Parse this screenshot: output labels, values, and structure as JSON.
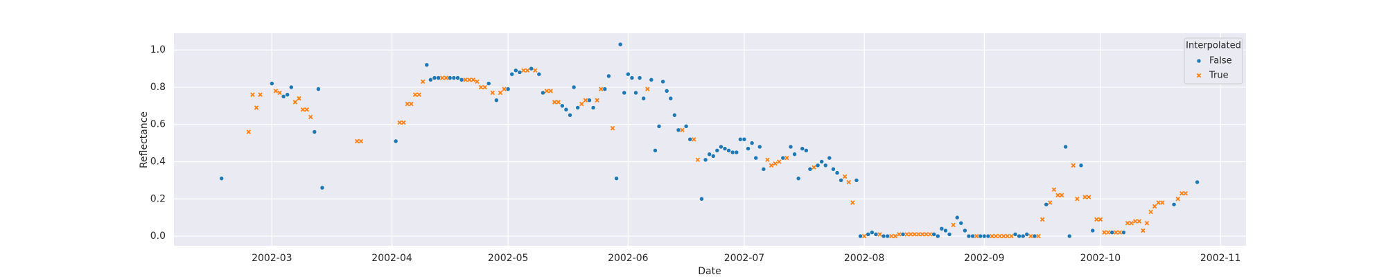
{
  "chart_data": {
    "type": "scatter",
    "x_label": "Date",
    "y_label": "Reflectance",
    "legend_title": "Interpolated",
    "legend_loc": "upper right",
    "grid": true,
    "xlim": [
      33.7,
      310.6
    ],
    "ylim": [
      -0.052,
      1.09
    ],
    "xticks": [
      {
        "value": 59,
        "label": "2002-03"
      },
      {
        "value": 90,
        "label": "2002-04"
      },
      {
        "value": 120,
        "label": "2002-05"
      },
      {
        "value": 151,
        "label": "2002-06"
      },
      {
        "value": 181,
        "label": "2002-07"
      },
      {
        "value": 212,
        "label": "2002-08"
      },
      {
        "value": 243,
        "label": "2002-09"
      },
      {
        "value": 273,
        "label": "2002-10"
      },
      {
        "value": 304,
        "label": "2002-11"
      }
    ],
    "yticks": [
      {
        "value": 0,
        "label": "0.0"
      },
      0.2,
      0.4,
      0.6,
      0.8,
      {
        "value": 1,
        "label": "1.0"
      }
    ],
    "series": [
      {
        "name": "False",
        "color": "#1f77b4",
        "marker": "o",
        "x": [
          46,
          59,
          62,
          63,
          64,
          70,
          71,
          72,
          91,
          99,
          100,
          101,
          102,
          105,
          106,
          107,
          108,
          115,
          117,
          120,
          121,
          122,
          123,
          126,
          128,
          129,
          134,
          135,
          136,
          137,
          138,
          141,
          142,
          145,
          146,
          148,
          149,
          150,
          151,
          152,
          153,
          154,
          155,
          157,
          158,
          159,
          160,
          161,
          162,
          163,
          164,
          166,
          167,
          170,
          171,
          172,
          173,
          174,
          175,
          176,
          177,
          178,
          179,
          180,
          181,
          182,
          183,
          184,
          185,
          186,
          191,
          193,
          194,
          195,
          196,
          197,
          198,
          200,
          201,
          202,
          203,
          204,
          205,
          206,
          210,
          211,
          213,
          214,
          215,
          217,
          218,
          222,
          230,
          231,
          232,
          233,
          234,
          236,
          237,
          238,
          239,
          240,
          242,
          243,
          244,
          251,
          252,
          253,
          254,
          256,
          259,
          264,
          265,
          268,
          271,
          276,
          279,
          292,
          298
        ],
        "values": [
          0.31,
          0.82,
          0.75,
          0.76,
          0.8,
          0.56,
          0.79,
          0.26,
          0.51,
          0.92,
          0.84,
          0.85,
          0.85,
          0.85,
          0.85,
          0.85,
          0.84,
          0.82,
          0.73,
          0.79,
          0.87,
          0.89,
          0.88,
          0.9,
          0.87,
          0.77,
          0.7,
          0.68,
          0.65,
          0.8,
          0.69,
          0.73,
          0.69,
          0.79,
          0.86,
          0.31,
          1.03,
          0.77,
          0.87,
          0.85,
          0.77,
          0.85,
          0.74,
          0.84,
          0.46,
          0.59,
          0.83,
          0.78,
          0.74,
          0.65,
          0.57,
          0.59,
          0.52,
          0.2,
          0.41,
          0.44,
          0.43,
          0.46,
          0.48,
          0.47,
          0.46,
          0.45,
          0.45,
          0.52,
          0.52,
          0.47,
          0.5,
          0.42,
          0.48,
          0.36,
          0.42,
          0.48,
          0.44,
          0.31,
          0.47,
          0.46,
          0.36,
          0.38,
          0.4,
          0.38,
          0.42,
          0.36,
          0.34,
          0.3,
          0.3,
          0,
          0.01,
          0.02,
          0.01,
          0,
          0,
          0.01,
          0.01,
          0,
          0.04,
          0.03,
          0.01,
          0.1,
          0.07,
          0.03,
          0,
          0,
          0,
          0,
          0,
          0.01,
          0,
          0,
          0.01,
          0,
          0.17,
          0.48,
          0,
          0.38,
          0.03,
          0.02,
          0.02,
          0.17,
          0.29
        ]
      },
      {
        "name": "True",
        "color": "#ff7f0e",
        "marker": "x",
        "x": [
          53,
          54,
          55,
          56,
          60,
          61,
          65,
          66,
          67,
          68,
          69,
          81,
          82,
          92,
          93,
          94,
          95,
          96,
          97,
          98,
          103,
          104,
          109,
          110,
          111,
          112,
          113,
          114,
          116,
          118,
          119,
          124,
          125,
          127,
          130,
          131,
          132,
          133,
          139,
          140,
          143,
          144,
          147,
          156,
          165,
          168,
          169,
          187,
          188,
          189,
          190,
          192,
          199,
          207,
          208,
          209,
          212,
          216,
          219,
          220,
          221,
          223,
          224,
          225,
          226,
          227,
          228,
          229,
          235,
          241,
          245,
          246,
          247,
          248,
          249,
          250,
          255,
          257,
          258,
          260,
          261,
          262,
          263,
          266,
          267,
          269,
          270,
          272,
          273,
          274,
          275,
          277,
          278,
          280,
          281,
          282,
          283,
          284,
          285,
          286,
          287,
          288,
          289,
          293,
          294,
          295
        ],
        "values": [
          0.56,
          0.76,
          0.69,
          0.76,
          0.78,
          0.77,
          0.72,
          0.74,
          0.68,
          0.68,
          0.64,
          0.51,
          0.51,
          0.61,
          0.61,
          0.71,
          0.71,
          0.76,
          0.76,
          0.83,
          0.85,
          0.85,
          0.84,
          0.84,
          0.84,
          0.83,
          0.8,
          0.8,
          0.77,
          0.77,
          0.79,
          0.89,
          0.89,
          0.89,
          0.78,
          0.78,
          0.72,
          0.72,
          0.71,
          0.73,
          0.73,
          0.79,
          0.58,
          0.79,
          0.57,
          0.52,
          0.41,
          0.41,
          0.38,
          0.39,
          0.4,
          0.42,
          0.37,
          0.32,
          0.29,
          0.18,
          0,
          0.01,
          0,
          0,
          0.01,
          0.01,
          0.01,
          0.01,
          0.01,
          0.01,
          0.01,
          0.01,
          0.06,
          0,
          0,
          0,
          0,
          0,
          0,
          0,
          0,
          0,
          0.09,
          0.18,
          0.25,
          0.22,
          0.22,
          0.38,
          0.2,
          0.21,
          0.21,
          0.09,
          0.09,
          0.02,
          0.02,
          0.02,
          0.02,
          0.07,
          0.07,
          0.08,
          0.08,
          0.03,
          0.07,
          0.13,
          0.16,
          0.18,
          0.18,
          0.2,
          0.23,
          0.23
        ]
      }
    ]
  }
}
